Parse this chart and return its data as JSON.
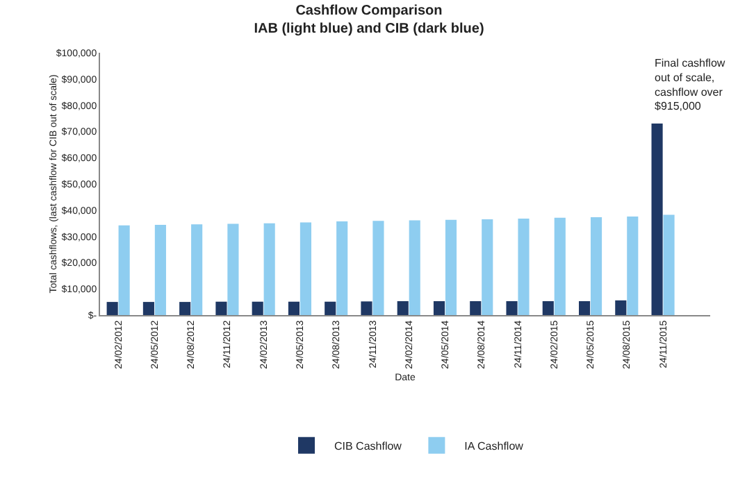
{
  "chart_data": {
    "type": "bar",
    "title": "Cashflow Comparison",
    "subtitle": "IAB (light blue) and CIB (dark blue)",
    "xlabel": "Date",
    "ylabel": "Total cashflows, (last cashflow for CIB out of scale)",
    "categories": [
      "24/02/2012",
      "24/05/2012",
      "24/08/2012",
      "24/11/2012",
      "24/02/2013",
      "24/05/2013",
      "24/08/2013",
      "24/11/2013",
      "24/02/2014",
      "24/05/2014",
      "24/08/2014",
      "24/11/2014",
      "24/02/2015",
      "24/05/2015",
      "24/08/2015",
      "24/11/2015"
    ],
    "series": [
      {
        "name": "CIB Cashflow",
        "color": "#1f3864",
        "values": [
          5000,
          5000,
          5000,
          5100,
          5100,
          5100,
          5100,
          5200,
          5300,
          5300,
          5300,
          5300,
          5300,
          5300,
          5600,
          73000
        ]
      },
      {
        "name": "IA Cashflow",
        "color": "#8ecdf0",
        "values": [
          34200,
          34400,
          34600,
          34800,
          35000,
          35300,
          35700,
          35900,
          36100,
          36300,
          36500,
          36800,
          37100,
          37300,
          37600,
          38200
        ]
      }
    ],
    "ylim": [
      0,
      100000
    ],
    "yticks": [
      {
        "value": 0,
        "label": "$-"
      },
      {
        "value": 10000,
        "label": "$10,000"
      },
      {
        "value": 20000,
        "label": "$20,000"
      },
      {
        "value": 30000,
        "label": "$30,000"
      },
      {
        "value": 40000,
        "label": "$40,000"
      },
      {
        "value": 50000,
        "label": "$50,000"
      },
      {
        "value": 60000,
        "label": "$60,000"
      },
      {
        "value": 70000,
        "label": "$70,000"
      },
      {
        "value": 80000,
        "label": "$80,000"
      },
      {
        "value": 90000,
        "label": "$90,000"
      },
      {
        "value": 100000,
        "label": "$100,000"
      }
    ],
    "grid": false,
    "legend": "bottom",
    "annotations": [
      {
        "text": "Final cashflow out of scale, cashflow over $915,000",
        "x": "24/11/2015",
        "y": 73000
      }
    ]
  }
}
